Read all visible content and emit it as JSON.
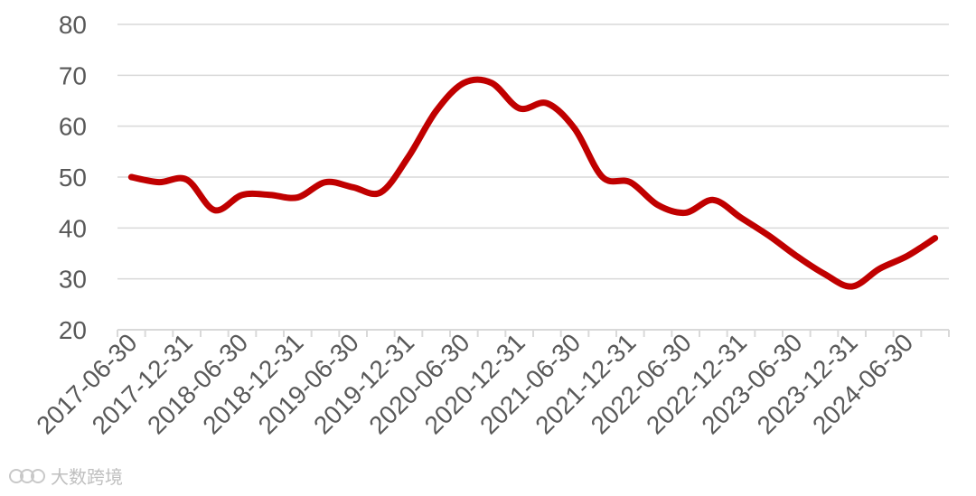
{
  "chart_data": {
    "type": "line",
    "title": "",
    "xlabel": "",
    "ylabel": "",
    "ylim": [
      20,
      80
    ],
    "yticks": [
      20,
      30,
      40,
      50,
      60,
      70,
      80
    ],
    "grid": true,
    "legend": "none",
    "x_tick_labels": [
      "2017-06-30",
      "2017-12-31",
      "2018-06-30",
      "2018-12-31",
      "2019-06-30",
      "2019-12-31",
      "2020-06-30",
      "2020-12-31",
      "2021-06-30",
      "2021-12-31",
      "2022-06-30",
      "2022-12-31",
      "2023-06-30",
      "2023-12-31",
      "2024-06-30"
    ],
    "x": [
      "2017-06-30",
      "2017-09-30",
      "2017-12-31",
      "2018-03-31",
      "2018-06-30",
      "2018-09-30",
      "2018-12-31",
      "2019-03-31",
      "2019-06-30",
      "2019-09-30",
      "2019-12-31",
      "2020-03-31",
      "2020-06-30",
      "2020-09-30",
      "2020-12-31",
      "2021-03-31",
      "2021-06-30",
      "2021-09-30",
      "2021-12-31",
      "2022-03-31",
      "2022-06-30",
      "2022-09-30",
      "2022-12-31",
      "2023-03-31",
      "2023-06-30",
      "2023-09-30",
      "2023-12-31",
      "2024-03-31",
      "2024-06-30",
      "2024-09-30"
    ],
    "series": [
      {
        "color": "#c00000",
        "values": [
          50,
          49,
          49.5,
          43.5,
          46.5,
          46.5,
          46,
          49,
          48,
          47,
          54,
          63,
          68.5,
          68.5,
          63.5,
          64.5,
          59.5,
          50,
          49,
          44.5,
          43,
          45.5,
          42,
          38.5,
          34.5,
          31,
          28.5,
          32,
          34.5,
          38
        ]
      }
    ]
  },
  "watermark": {
    "text": "大数跨境"
  }
}
